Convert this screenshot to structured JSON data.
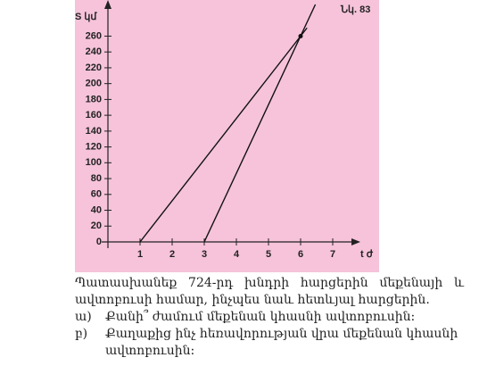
{
  "chart_data": {
    "type": "line",
    "annotation": "Նկ. 83",
    "ylabel": "S կմ",
    "xlabel": "t ժ",
    "background": "#f6c3da",
    "series": [
      {
        "color": "#111111",
        "x": [
          1,
          6.2
        ],
        "values": [
          0,
          270.4
        ]
      },
      {
        "color": "#111111",
        "x": [
          3,
          6.46
        ],
        "values": [
          0,
          300
        ]
      }
    ],
    "point": [
      6,
      260
    ],
    "xlim": [
      0,
      7.75
    ],
    "ylim": [
      0,
      300
    ],
    "xticks": [
      1,
      2,
      3,
      4,
      5,
      6,
      7
    ],
    "yticks": [
      0,
      20,
      40,
      60,
      80,
      100,
      120,
      140,
      160,
      180,
      200,
      220,
      240,
      260
    ]
  },
  "text": {
    "intro": "Պատասխանեք 724-րդ խնդրի հարցերին մեքենայի և ավտոբուսի համար, ինչպես նաև հետևյալ հարցերին.",
    "items": [
      {
        "marker": "ա)",
        "text": "Քանի՞ ժամում մեքենան կհասնի ավտոբուսին:"
      },
      {
        "marker": "բ)",
        "text": "Քաղաքից ինչ հեռավորության վրա մեքենան կհասնի ավտոբուսին:"
      }
    ]
  }
}
